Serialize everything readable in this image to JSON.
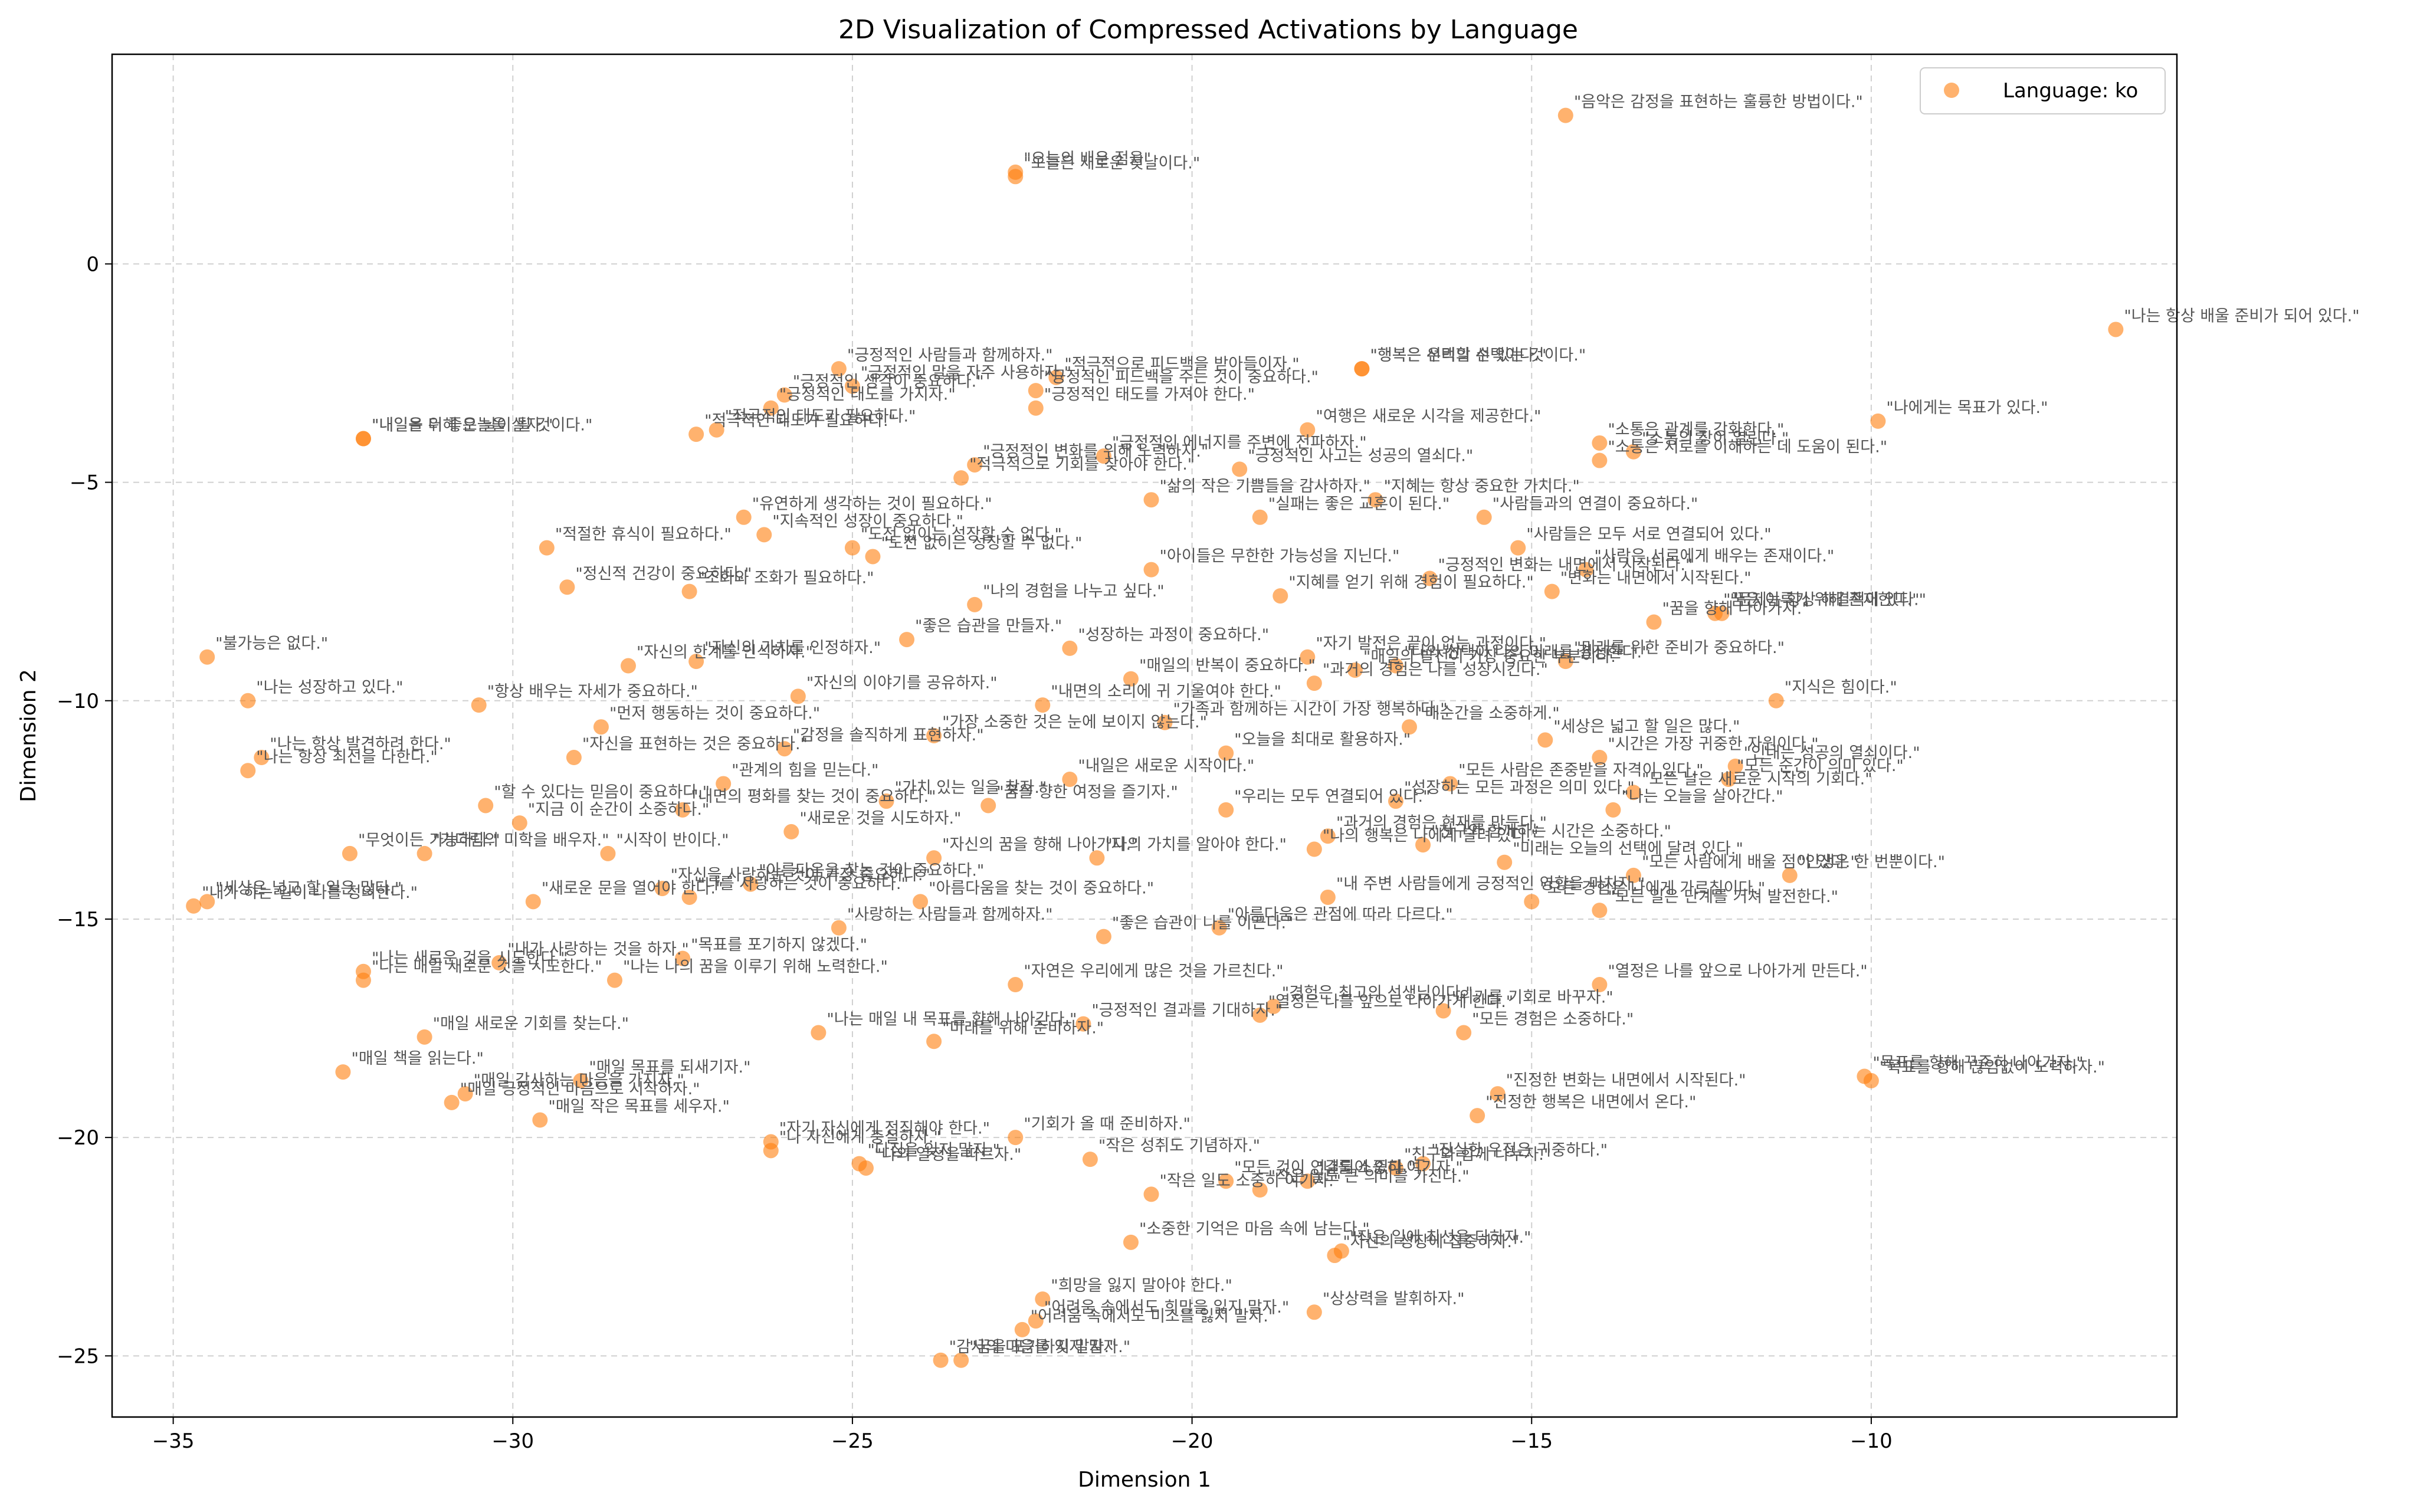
{
  "chart_data": {
    "type": "scatter",
    "title": "2D Visualization of Compressed Activations by Language",
    "xlabel": "Dimension 1",
    "ylabel": "Dimension 2",
    "xlim": [
      -35.9,
      -5.5
    ],
    "ylim": [
      -26.4,
      4.8
    ],
    "xticks": [
      -35,
      -30,
      -25,
      -20,
      -15,
      -10
    ],
    "yticks": [
      0,
      -5,
      -10,
      -15,
      -20,
      -25
    ],
    "xtick_labels": [
      "−35",
      "−30",
      "−25",
      "−20",
      "−15",
      "−10"
    ],
    "ytick_labels": [
      "0",
      "−5",
      "−10",
      "−15",
      "−20",
      "−25"
    ],
    "grid": true,
    "legend_position": "top-right",
    "legend": "Language: ko",
    "marker_color": "#ff7f0e",
    "points": [
      {
        "x": -14.5,
        "y": 3.4,
        "label": "\"음악은 감정을 표현하는 훌륭한 방법이다.\""
      },
      {
        "x": -22.6,
        "y": 2.1,
        "label": "\"오늘의 배운 점을\""
      },
      {
        "x": -22.6,
        "y": 2.0,
        "label": "\"오늘은 새로운 첫날이다.\""
      },
      {
        "x": -6.4,
        "y": -1.5,
        "label": "\"나는 항상 배울 준비가 되어 있다.\""
      },
      {
        "x": -25.2,
        "y": -2.4,
        "label": "\"긍정적인 사람들과 함께하자.\""
      },
      {
        "x": -22.0,
        "y": -2.6,
        "label": "\"적극적으로 피드백을 받아들이자.\""
      },
      {
        "x": -17.5,
        "y": -2.4,
        "label": "\"행복은 선택할 수 있는 것이다.\""
      },
      {
        "x": -17.5,
        "y": -2.4,
        "label": "\"행복은 우리의 선택이다.\""
      },
      {
        "x": -25.0,
        "y": -2.8,
        "label": "\"긍정적인 말을 자주 사용하자.\""
      },
      {
        "x": -22.3,
        "y": -2.9,
        "label": "\"긍정적인 피드백을 주는 것이 중요하다.\""
      },
      {
        "x": -26.0,
        "y": -3.0,
        "label": "\"긍정적인 생각이 중요하다.\""
      },
      {
        "x": -26.2,
        "y": -3.3,
        "label": "\"긍정적인 태도를 가지자.\""
      },
      {
        "x": -22.3,
        "y": -3.3,
        "label": "\"긍정적인 태도를 가져야 한다.\""
      },
      {
        "x": -32.2,
        "y": -4.0,
        "label": "\"내일은 더 좋은 날이 될 것이다.\""
      },
      {
        "x": -32.2,
        "y": -4.0,
        "label": "\"내일을 위해 오늘을 살자.\""
      },
      {
        "x": -27.0,
        "y": -3.8,
        "label": "\"적극적인 태도가 필요하다.\""
      },
      {
        "x": -27.3,
        "y": -3.9,
        "label": "\"적극적인 태도가 필요하다.\""
      },
      {
        "x": -18.3,
        "y": -3.8,
        "label": "\"여행은 새로운 시각을 제공한다.\""
      },
      {
        "x": -9.9,
        "y": -3.6,
        "label": "\"나에게는 목표가 있다.\""
      },
      {
        "x": -14.0,
        "y": -4.1,
        "label": "\"소통은 관계를 강화한다.\""
      },
      {
        "x": -13.5,
        "y": -4.3,
        "label": "\"소통의 장이 열린다.\""
      },
      {
        "x": -14.0,
        "y": -4.5,
        "label": "\"소통은 서로를 이해하는 데 도움이 된다.\""
      },
      {
        "x": -21.3,
        "y": -4.4,
        "label": "\"긍정적인 에너지를 주변에 전파하자.\""
      },
      {
        "x": -23.2,
        "y": -4.6,
        "label": "\"긍정적인 변화를 위해 노력하자.\""
      },
      {
        "x": -19.3,
        "y": -4.7,
        "label": "\"긍정적인 사고는 성공의 열쇠다.\""
      },
      {
        "x": -23.4,
        "y": -4.9,
        "label": "\"적극적으로 기회를 찾아야 한다.\""
      },
      {
        "x": -20.6,
        "y": -5.4,
        "label": "\"삶의 작은 기쁨들을 감사하자.\""
      },
      {
        "x": -19.0,
        "y": -5.8,
        "label": "\"실패는 좋은 교훈이 된다.\""
      },
      {
        "x": -17.3,
        "y": -5.4,
        "label": "\"지혜는 항상 중요한 가치다.\""
      },
      {
        "x": -15.7,
        "y": -5.8,
        "label": "\"사람들과의 연결이 중요하다.\""
      },
      {
        "x": -26.6,
        "y": -5.8,
        "label": "\"유연하게 생각하는 것이 필요하다.\""
      },
      {
        "x": -26.3,
        "y": -6.2,
        "label": "\"지속적인 성장이 중요하다.\""
      },
      {
        "x": -25.0,
        "y": -6.5,
        "label": "\"도전 없이는 성장할 수 없다.\""
      },
      {
        "x": -24.7,
        "y": -6.7,
        "label": "\"도전 없이는 성장할 수 없다.\""
      },
      {
        "x": -29.5,
        "y": -6.5,
        "label": "\"적절한 휴식이 필요하다.\""
      },
      {
        "x": -15.2,
        "y": -6.5,
        "label": "\"사람들은 모두 서로 연결되어 있다.\""
      },
      {
        "x": -14.2,
        "y": -7.0,
        "label": "\"사람은 서로에게 배우는 존재이다.\""
      },
      {
        "x": -20.6,
        "y": -7.0,
        "label": "\"아이들은 무한한 가능성을 지닌다.\""
      },
      {
        "x": -29.2,
        "y": -7.4,
        "label": "\"정신적 건강이 중요하다.\""
      },
      {
        "x": -27.4,
        "y": -7.5,
        "label": "\"조화와 조화가 필요하다.\""
      },
      {
        "x": -18.7,
        "y": -7.6,
        "label": "\"지혜를 얻기 위해 경험이 필요하다.\""
      },
      {
        "x": -16.5,
        "y": -7.2,
        "label": "\"긍정적인 변화는 내면에서 시작된다.\""
      },
      {
        "x": -14.7,
        "y": -7.5,
        "label": "\"변화는 내면에서 시작된다.\""
      },
      {
        "x": -12.3,
        "y": -8.0,
        "label": "\"꿈은 이루기 위해 존재한다.\""
      },
      {
        "x": -12.2,
        "y": -8.0,
        "label": "\"문제는 항상 해결책이 있다.\""
      },
      {
        "x": -13.2,
        "y": -8.2,
        "label": "\"꿈을 향해 나아가자.\""
      },
      {
        "x": -23.2,
        "y": -7.8,
        "label": "\"나의 경험을 나누고 싶다.\""
      },
      {
        "x": -34.5,
        "y": -9.0,
        "label": "\"불가능은 없다.\""
      },
      {
        "x": -28.3,
        "y": -9.2,
        "label": "\"자신의 한계를 인식하자.\""
      },
      {
        "x": -27.3,
        "y": -9.1,
        "label": "\"자신의 가치를 인정하자.\""
      },
      {
        "x": -24.2,
        "y": -8.6,
        "label": "\"좋은 습관을 만들자.\""
      },
      {
        "x": -21.8,
        "y": -8.8,
        "label": "\"성장하는 과정이 중요하다.\""
      },
      {
        "x": -20.9,
        "y": -9.5,
        "label": "\"매일의 반복이 중요하다.\""
      },
      {
        "x": -18.3,
        "y": -9.0,
        "label": "\"자기 발전은 끝이 없는 과정이다.\""
      },
      {
        "x": -17.0,
        "y": -9.2,
        "label": "\"나의 선택이 나의 미래를 결정한다.\""
      },
      {
        "x": -14.5,
        "y": -9.1,
        "label": "\"미래를 위한 준비가 중요하다.\""
      },
      {
        "x": -17.6,
        "y": -9.3,
        "label": "\"매일의 발전이 가장 중요한 부분이다.\""
      },
      {
        "x": -33.9,
        "y": -10.0,
        "label": "\"나는 성장하고 있다.\""
      },
      {
        "x": -30.5,
        "y": -10.1,
        "label": "\"항상 배우는 자세가 중요하다.\""
      },
      {
        "x": -25.8,
        "y": -9.9,
        "label": "\"자신의 이야기를 공유하자.\""
      },
      {
        "x": -22.2,
        "y": -10.1,
        "label": "\"내면의 소리에 귀 기울여야 한다.\""
      },
      {
        "x": -18.2,
        "y": -9.6,
        "label": "\"과거의 경험은 나를 성장시킨다.\""
      },
      {
        "x": -11.4,
        "y": -10.0,
        "label": "\"지식은 힘이다.\""
      },
      {
        "x": -28.7,
        "y": -10.6,
        "label": "\"먼저 행동하는 것이 중요하다.\""
      },
      {
        "x": -23.8,
        "y": -10.8,
        "label": "\"가장 소중한 것은 눈에 보이지 않는다.\""
      },
      {
        "x": -20.4,
        "y": -10.5,
        "label": "\"가족과 함께하는 시간이 가장 행복하다.\""
      },
      {
        "x": -16.8,
        "y": -10.6,
        "label": "\"매순간을 소중하게.\""
      },
      {
        "x": -14.8,
        "y": -10.9,
        "label": "\"세상은 넓고 할 일은 많다.\""
      },
      {
        "x": -33.7,
        "y": -11.3,
        "label": "\"나는 항상 발견하려 한다.\""
      },
      {
        "x": -33.9,
        "y": -11.6,
        "label": "\"나는 항상 최선을 다한다.\""
      },
      {
        "x": -29.1,
        "y": -11.3,
        "label": "\"자신을 표현하는 것은 중요하다.\""
      },
      {
        "x": -26.0,
        "y": -11.1,
        "label": "\"감정을 솔직하게 표현하자.\""
      },
      {
        "x": -19.5,
        "y": -11.2,
        "label": "\"오늘을 최대로 활용하자.\""
      },
      {
        "x": -14.0,
        "y": -11.3,
        "label": "\"시간은 가장 귀중한 자원이다.\""
      },
      {
        "x": -12.0,
        "y": -11.5,
        "label": "\"인내는 성공의 열쇠이다.\""
      },
      {
        "x": -26.9,
        "y": -11.9,
        "label": "\"관계의 힘을 믿는다.\""
      },
      {
        "x": -21.8,
        "y": -11.8,
        "label": "\"내일은 새로운 시작이다.\""
      },
      {
        "x": -16.2,
        "y": -11.9,
        "label": "\"모든 사람은 존중받을 자격이 있다.\""
      },
      {
        "x": -12.1,
        "y": -11.8,
        "label": "\"모든 순간이 의미 있다.\""
      },
      {
        "x": -13.5,
        "y": -12.1,
        "label": "\"모든 날은 새로운 시작의 기회다.\""
      },
      {
        "x": -30.4,
        "y": -12.4,
        "label": "\"할 수 있다는 믿음이 중요하다.\""
      },
      {
        "x": -27.5,
        "y": -12.5,
        "label": "\"내면의 평화를 찾는 것이 중요하다.\""
      },
      {
        "x": -24.5,
        "y": -12.3,
        "label": "\"가치 있는 일을 찾자.\""
      },
      {
        "x": -23.0,
        "y": -12.4,
        "label": "\"꿈을 향한 여정을 즐기자.\""
      },
      {
        "x": -19.5,
        "y": -12.5,
        "label": "\"우리는 모두 연결되어 있다.\""
      },
      {
        "x": -17.0,
        "y": -12.3,
        "label": "\"성장하는 모든 과정은 의미 있다.\""
      },
      {
        "x": -13.8,
        "y": -12.5,
        "label": "\"나는 오늘을 살아간다.\""
      },
      {
        "x": -29.9,
        "y": -12.8,
        "label": "\"지금 이 순간이 소중하다.\""
      },
      {
        "x": -25.9,
        "y": -13.0,
        "label": "\"새로운 것을 시도하자.\""
      },
      {
        "x": -18.0,
        "y": -13.1,
        "label": "\"과거의 경험은 현재를 만든다.\""
      },
      {
        "x": -16.6,
        "y": -13.3,
        "label": "\"친구와 함께하는 시간은 소중하다.\""
      },
      {
        "x": -32.4,
        "y": -13.5,
        "label": "\"무엇이든 가능하다.\""
      },
      {
        "x": -31.3,
        "y": -13.5,
        "label": "\"기다림의 미학을 배우자.\""
      },
      {
        "x": -28.6,
        "y": -13.5,
        "label": "\"시작이 반이다.\""
      },
      {
        "x": -23.8,
        "y": -13.6,
        "label": "\"자신의 꿈을 향해 나아가자.\""
      },
      {
        "x": -21.4,
        "y": -13.6,
        "label": "\"나의 가치를 알아야 한다.\""
      },
      {
        "x": -18.2,
        "y": -13.4,
        "label": "\"나의 행복은 나에게 달려 있다.\""
      },
      {
        "x": -15.4,
        "y": -13.7,
        "label": "\"미래는 오늘의 선택에 달려 있다.\""
      },
      {
        "x": -11.2,
        "y": -14.0,
        "label": "\"인생은 한 번뿐이다.\""
      },
      {
        "x": -27.8,
        "y": -14.3,
        "label": "\"자신을 사랑하는 것이 가장 중요하다.\""
      },
      {
        "x": -26.5,
        "y": -14.2,
        "label": "\"아름다움을 찾는 것이 중요하다.\""
      },
      {
        "x": -13.5,
        "y": -14.0,
        "label": "\"모든 사람에게 배울 점이 있다.\""
      },
      {
        "x": -34.7,
        "y": -14.7,
        "label": "\"내가 하는 일이 나를 정의한다.\""
      },
      {
        "x": -34.5,
        "y": -14.6,
        "label": "\"세상은 넓고 할 일은 많다.\""
      },
      {
        "x": -29.7,
        "y": -14.6,
        "label": "\"새로운 문을 열어야 한다.\""
      },
      {
        "x": -27.4,
        "y": -14.5,
        "label": "\"나를 사랑하는 것이 중요하다.\""
      },
      {
        "x": -24.0,
        "y": -14.6,
        "label": "\"아름다움을 찾는 것이 중요하다.\""
      },
      {
        "x": -18.0,
        "y": -14.5,
        "label": "\"내 주변 사람들에게 긍정적인 영향을 미치자.\""
      },
      {
        "x": -15.0,
        "y": -14.6,
        "label": "\"모든 경험은 나에게 가르침이다.\""
      },
      {
        "x": -14.0,
        "y": -14.8,
        "label": "\"모든 일은 단계를 거쳐 발전한다.\""
      },
      {
        "x": -25.2,
        "y": -15.2,
        "label": "\"사랑하는 사람들과 함께하자.\""
      },
      {
        "x": -21.3,
        "y": -15.4,
        "label": "\"좋은 습관이 나를 이끈다.\""
      },
      {
        "x": -19.6,
        "y": -15.2,
        "label": "\"아름다움은 관점에 따라 다르다.\""
      },
      {
        "x": -32.2,
        "y": -16.2,
        "label": "\"나는 새로운 것을 시도한다.\""
      },
      {
        "x": -32.2,
        "y": -16.4,
        "label": "\"나는 매일 새로운 것을 시도한다.\""
      },
      {
        "x": -30.2,
        "y": -16.0,
        "label": "\"내가 사랑하는 것을 하자.\""
      },
      {
        "x": -28.5,
        "y": -16.4,
        "label": "\"나는 나의 꿈을 이루기 위해 노력한다.\""
      },
      {
        "x": -27.5,
        "y": -15.9,
        "label": "\"목표를 포기하지 않겠다.\""
      },
      {
        "x": -22.6,
        "y": -16.5,
        "label": "\"자연은 우리에게 많은 것을 가르친다.\""
      },
      {
        "x": -18.8,
        "y": -17.0,
        "label": "\"경험은 최고의 선생님이다.\""
      },
      {
        "x": -16.3,
        "y": -17.1,
        "label": "\"위기를 기회로 바꾸자.\""
      },
      {
        "x": -14.0,
        "y": -16.5,
        "label": "\"열정은 나를 앞으로 나아가게 만든다.\""
      },
      {
        "x": -31.3,
        "y": -17.7,
        "label": "\"매일 새로운 기회를 찾는다.\""
      },
      {
        "x": -25.5,
        "y": -17.6,
        "label": "\"나는 매일 내 목표를 향해 나아간다.\""
      },
      {
        "x": -23.8,
        "y": -17.8,
        "label": "\"미래를 위해 준비하자.\""
      },
      {
        "x": -21.6,
        "y": -17.4,
        "label": "\"긍정적인 결과를 기대하자.\""
      },
      {
        "x": -19.0,
        "y": -17.2,
        "label": "\"열정은 나를 앞으로 나아가게 한다.\""
      },
      {
        "x": -16.0,
        "y": -17.6,
        "label": "\"모든 경험은 소중하다.\""
      },
      {
        "x": -32.5,
        "y": -18.5,
        "label": "\"매일 책을 읽는다.\""
      },
      {
        "x": -30.7,
        "y": -19.0,
        "label": "\"매일 감사하는 마음을 가지자.\""
      },
      {
        "x": -29.0,
        "y": -18.7,
        "label": "\"매일 목표를 되새기자.\""
      },
      {
        "x": -30.9,
        "y": -19.2,
        "label": "\"매일 긍정적인 마음으로 시작하자.\""
      },
      {
        "x": -29.6,
        "y": -19.6,
        "label": "\"매일 작은 목표를 세우자.\""
      },
      {
        "x": -10.1,
        "y": -18.6,
        "label": "\"목표를 향해 꾸준히 나아가자.\""
      },
      {
        "x": -10.0,
        "y": -18.7,
        "label": "\"목표를 향해 끊임없이 노력하자.\""
      },
      {
        "x": -15.5,
        "y": -19.0,
        "label": "\"진정한 변화는 내면에서 시작된다.\""
      },
      {
        "x": -15.8,
        "y": -19.5,
        "label": "\"진정한 행복은 내면에서 온다.\""
      },
      {
        "x": -26.2,
        "y": -20.1,
        "label": "\"자기 자신에게 정직해야 한다.\""
      },
      {
        "x": -26.2,
        "y": -20.3,
        "label": "\"나 자신에게 충실하자.\""
      },
      {
        "x": -24.9,
        "y": -20.6,
        "label": "\"다짐을 잊지 말자.\""
      },
      {
        "x": -24.8,
        "y": -20.7,
        "label": "\"나의 열정을 따르자.\""
      },
      {
        "x": -22.6,
        "y": -20.0,
        "label": "\"기회가 올 때 준비하자.\""
      },
      {
        "x": -21.5,
        "y": -20.5,
        "label": "\"작은 성취도 기념하자.\""
      },
      {
        "x": -16.6,
        "y": -20.6,
        "label": "\"진실한 우정은 귀중하다.\""
      },
      {
        "x": -17.0,
        "y": -20.7,
        "label": "\"친구와 함께 나누자.\""
      },
      {
        "x": -20.6,
        "y": -21.3,
        "label": "\"작은 일도 소중히 여기자.\""
      },
      {
        "x": -19.5,
        "y": -21.0,
        "label": "\"모든 것이 연결되어 있다.\""
      },
      {
        "x": -19.0,
        "y": -21.2,
        "label": "\"작은 일도 큰 의미를 가진다.\""
      },
      {
        "x": -18.3,
        "y": -21.0,
        "label": "\"나를 소중히 여기자.\""
      },
      {
        "x": -20.9,
        "y": -22.4,
        "label": "\"소중한 기억은 마음 속에 남는다.\""
      },
      {
        "x": -17.8,
        "y": -22.6,
        "label": "\"작은 일에 최선을 다하자.\""
      },
      {
        "x": -17.9,
        "y": -22.7,
        "label": "\"자신의 성장에 집중하자.\""
      },
      {
        "x": -22.2,
        "y": -23.7,
        "label": "\"희망을 잃지 말아야 한다.\""
      },
      {
        "x": -18.2,
        "y": -24.0,
        "label": "\"상상력을 발휘하자.\""
      },
      {
        "x": -22.3,
        "y": -24.2,
        "label": "\"어려움 속에서도 희망을 잃지 말자.\""
      },
      {
        "x": -22.5,
        "y": -24.4,
        "label": "\"어려움 속에서도 미소를 잃지 말자.\""
      },
      {
        "x": -23.7,
        "y": -25.1,
        "label": "\"감사의 마음을 잊지 말자.\""
      },
      {
        "x": -23.4,
        "y": -25.1,
        "label": "\"꿈을 포기하지 말자.\""
      }
    ]
  }
}
